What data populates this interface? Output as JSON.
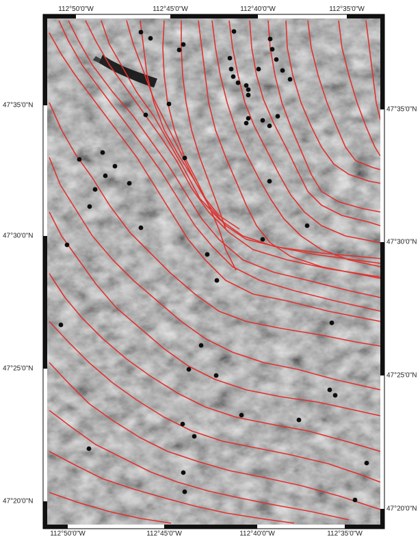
{
  "map": {
    "top_lon_labels": [
      "112°50'0\"W",
      "112°45'0\"W",
      "112°40'0\"W",
      "112°35'0\"W"
    ],
    "bottom_lon_labels": [
      "112°50'0\"W",
      "112°45'0\"W",
      "112°40'0\"W",
      "112°35'0\"W"
    ],
    "left_lat_labels": [
      "47°35'0\"N",
      "47°30'0\"N",
      "47°25'0\"N",
      "47°20'0\"N"
    ],
    "right_lat_labels": [
      "47°35'0\"N",
      "47°30'0\"N",
      "47°25'0\"N",
      "47°20'0\"N"
    ],
    "colors": {
      "background": "#7e7e7e",
      "contour_line": "#e0312e",
      "point_marker": "#0d0d0d",
      "frame_black": "#111111",
      "frame_white": "#ffffff"
    }
  }
}
